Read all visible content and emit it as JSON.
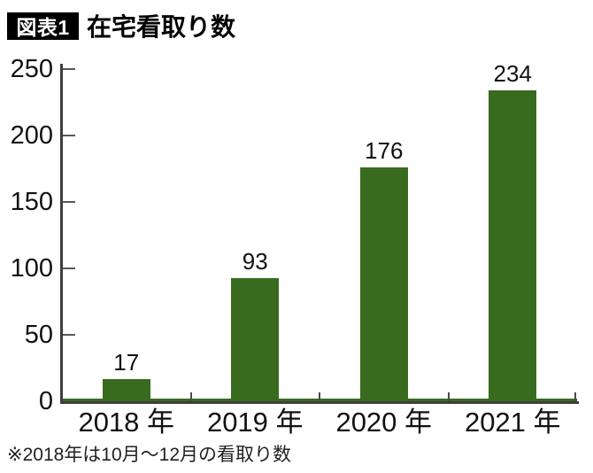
{
  "header": {
    "badge": "図表1",
    "title": "在宅看取り数"
  },
  "footnote": "※2018年は10月〜12月の看取り数",
  "colors": {
    "bar": "#386b1e",
    "axis": "#3f3f3f",
    "tick": "#595959",
    "badge_bg": "#000000",
    "badge_text": "#ffffff",
    "text": "#111111"
  },
  "chart_data": {
    "type": "bar",
    "title": "在宅看取り数",
    "categories": [
      "2018 年",
      "2019 年",
      "2020 年",
      "2021 年"
    ],
    "values": [
      17,
      93,
      176,
      234
    ],
    "xlabel": "",
    "ylabel": "",
    "ylim": [
      0,
      250
    ],
    "yticks": [
      0,
      50,
      100,
      150,
      200,
      250
    ],
    "grid": false,
    "legend": "none",
    "bar_color": "#386b1e",
    "value_labels_shown": true,
    "note": "※2018年は10月〜12月の看取り数"
  }
}
